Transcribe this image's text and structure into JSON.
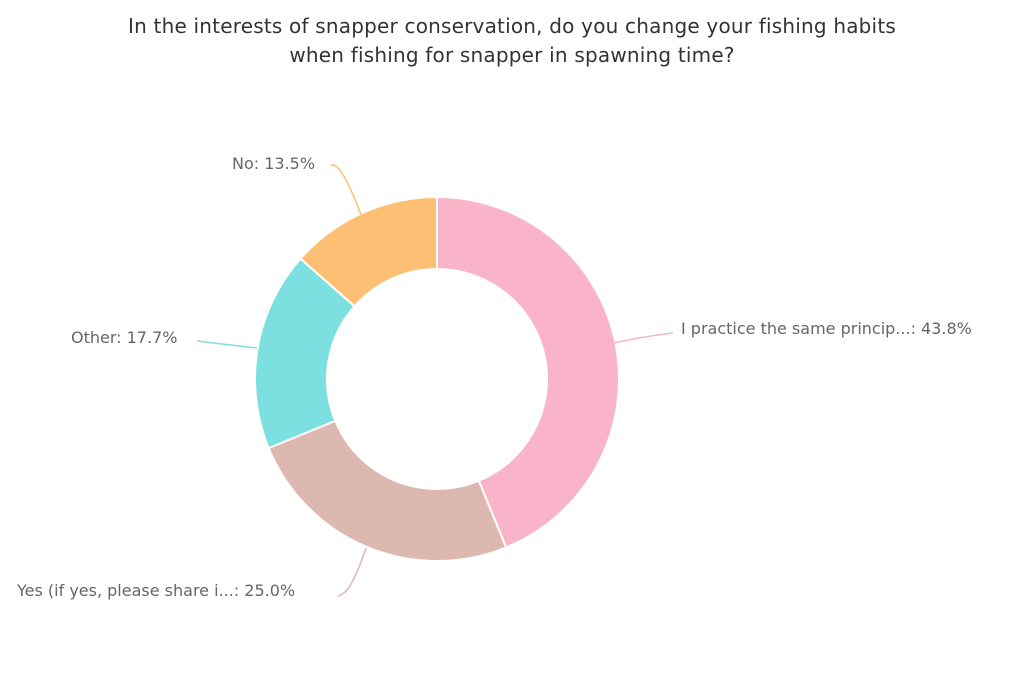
{
  "chart_data": {
    "type": "pie",
    "variant": "donut",
    "title": "In the interests of snapper conservation, do you change your fishing habits when fishing for snapper in spawning time?",
    "title_lines": [
      "In the interests of snapper conservation, do you change your fishing habits",
      "when fishing for snapper in spawning time?"
    ],
    "categories": [
      "I practice the same princip...",
      "Yes (if yes, please share i...",
      "Other",
      "No"
    ],
    "values": [
      43.8,
      25.0,
      17.7,
      13.5
    ],
    "unit": "%",
    "colors": [
      "#f9b4ca",
      "#dcb8b0",
      "#7be0df",
      "#fdbf73"
    ],
    "labels": [
      "I practice the same princip...: 43.8%",
      "Yes (if yes, please share i...: 25.0%",
      "Other: 17.7%",
      "No: 13.5%"
    ],
    "start_angle_deg": 0,
    "direction": "clockwise",
    "legend": "none (data labels with connectors)"
  }
}
